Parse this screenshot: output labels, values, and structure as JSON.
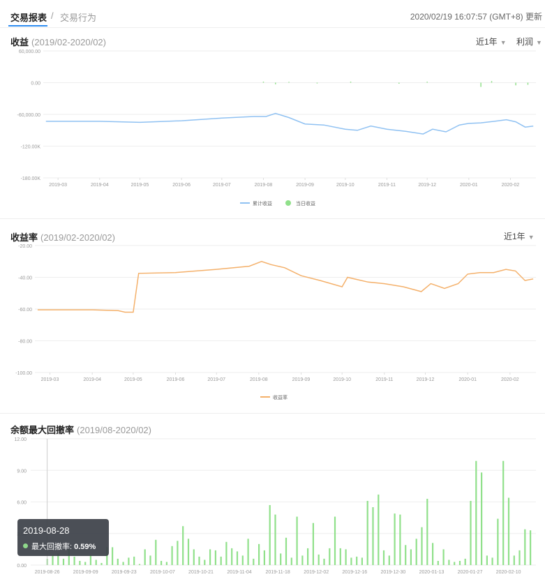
{
  "header": {
    "tab_active": "交易报表",
    "separator": "/",
    "tab_inactive": "交易行为",
    "datetime": "2020/02/19 16:07:57",
    "timezone": "(GMT+8)",
    "update": "更新"
  },
  "profit": {
    "title": "收益",
    "period": "(2019/02-2020/02)",
    "range_label": "近1年",
    "metric_label": "利润"
  },
  "rate": {
    "title": "收益率",
    "period": "(2019/02-2020/02)",
    "range_label": "近1年"
  },
  "drawdown": {
    "title": "余额最大回撤率",
    "period": "(2019/08-2020/02)"
  },
  "tooltip": {
    "date": "2019-08-28",
    "label": "最大回撤率:",
    "value": "0.59%"
  },
  "colors": {
    "accent": "#2d8cf0",
    "profit_line": "#8fc1f2",
    "rate_line": "#f4b06a",
    "bar_green": "#90e08a",
    "grid": "#eeeeee"
  },
  "chart_data": [
    {
      "type": "line",
      "title": "收益",
      "x_ticks": [
        "2019-03",
        "2019-04",
        "2019-05",
        "2019-06",
        "2019-07",
        "2019-08",
        "2019-09",
        "2019-10",
        "2019-11",
        "2019-12",
        "2020-01",
        "2020-02"
      ],
      "y_ticks": [
        "60,000.00",
        "0.00",
        "-60,000.00",
        "-120.00K",
        "-180.00K"
      ],
      "ylim": [
        -180000,
        60000
      ],
      "legend": [
        "累计收益",
        "当日收益"
      ],
      "series": [
        {
          "name": "累计收益",
          "x": [
            "2019-02-20",
            "2019-04-01",
            "2019-05-01",
            "2019-06-01",
            "2019-07-01",
            "2019-07-25",
            "2019-08-03",
            "2019-08-10",
            "2019-08-20",
            "2019-09-01",
            "2019-09-15",
            "2019-10-01",
            "2019-10-10",
            "2019-10-20",
            "2019-11-01",
            "2019-11-15",
            "2019-11-28",
            "2019-12-05",
            "2019-12-15",
            "2019-12-25",
            "2020-01-01",
            "2020-01-10",
            "2020-01-20",
            "2020-01-29",
            "2020-02-05",
            "2020-02-12",
            "2020-02-18"
          ],
          "y": [
            -73000,
            -73000,
            -75000,
            -72000,
            -67000,
            -64000,
            -64000,
            -58000,
            -66000,
            -78000,
            -80000,
            -88000,
            -90000,
            -82000,
            -88000,
            -92000,
            -97000,
            -88000,
            -93000,
            -80000,
            -77000,
            -76000,
            -73000,
            -70000,
            -74000,
            -84000,
            -82000
          ]
        },
        {
          "name": "当日收益",
          "x": [
            "2019-08-01",
            "2019-08-10",
            "2019-08-20",
            "2019-09-10",
            "2019-10-05",
            "2019-11-10",
            "2019-12-01",
            "2020-01-10",
            "2020-01-18",
            "2020-02-05",
            "2020-02-14"
          ],
          "y": [
            2000,
            -3000,
            1500,
            -1500,
            2000,
            -2000,
            1800,
            -8000,
            3000,
            -5000,
            -4000
          ]
        }
      ]
    },
    {
      "type": "line",
      "title": "收益率",
      "x_ticks": [
        "2019-03",
        "2019-04",
        "2019-05",
        "2019-06",
        "2019-07",
        "2019-08",
        "2019-09",
        "2019-10",
        "2019-11",
        "2019-12",
        "2020-01",
        "2020-02"
      ],
      "y_ticks": [
        "-20.00",
        "-40.00",
        "-60.00",
        "-80.00",
        "-100.00"
      ],
      "ylim": [
        -100,
        -20
      ],
      "legend": [
        "收益率"
      ],
      "series": [
        {
          "name": "收益率",
          "x": [
            "2019-02-20",
            "2019-04-01",
            "2019-04-20",
            "2019-04-25",
            "2019-05-01",
            "2019-05-05",
            "2019-06-01",
            "2019-07-01",
            "2019-07-25",
            "2019-08-03",
            "2019-08-10",
            "2019-08-20",
            "2019-09-01",
            "2019-09-15",
            "2019-10-01",
            "2019-10-05",
            "2019-10-20",
            "2019-11-01",
            "2019-11-15",
            "2019-11-28",
            "2019-12-05",
            "2019-12-15",
            "2019-12-25",
            "2020-01-01",
            "2020-01-10",
            "2020-01-20",
            "2020-01-29",
            "2020-02-05",
            "2020-02-12",
            "2020-02-18"
          ],
          "y": [
            -60.5,
            -60.5,
            -61,
            -62,
            -62,
            -37.5,
            -37,
            -35,
            -33,
            -30,
            -32,
            -34,
            -39,
            -42,
            -46,
            -40,
            -43,
            -44,
            -46,
            -49,
            -44,
            -47,
            -44,
            -38,
            -37,
            -37,
            -35,
            -36,
            -42,
            -41
          ]
        }
      ]
    },
    {
      "type": "bar",
      "title": "余额最大回撤率",
      "x_ticks": [
        "2019-08-26",
        "2019-09-09",
        "2019-09-23",
        "2019-10-07",
        "2019-10-21",
        "2019-11-04",
        "2019-11-18",
        "2019-12-02",
        "2019-12-16",
        "2019-12-30",
        "2020-01-13",
        "2020-01-27",
        "2020-02-10"
      ],
      "y_ticks": [
        "12.00",
        "9.00",
        "6.00",
        "3.00",
        "0.00"
      ],
      "ylim": [
        0,
        12
      ],
      "series": [
        {
          "name": "最大回撤率",
          "values": [
            0.59,
            0.9,
            1.1,
            0.6,
            1.5,
            0.8,
            0.4,
            0.3,
            0.9,
            0.5,
            0.2,
            1.7,
            1.7,
            0.6,
            0.3,
            0.7,
            0.8,
            0.1,
            1.5,
            0.9,
            2.4,
            0.4,
            0.3,
            1.8,
            2.3,
            3.7,
            2.5,
            1.5,
            0.8,
            0.5,
            1.5,
            1.4,
            0.8,
            2.2,
            1.6,
            1.3,
            0.9,
            2.5,
            0.6,
            2.0,
            1.4,
            5.7,
            4.8,
            1.1,
            2.6,
            0.7,
            4.6,
            0.9,
            1.6,
            4.0,
            1.0,
            0.6,
            1.6,
            4.6,
            1.6,
            1.5,
            0.7,
            0.8,
            0.7,
            6.1,
            5.5,
            6.7,
            1.4,
            0.9,
            4.9,
            4.8,
            1.9,
            1.5,
            2.5,
            3.6,
            6.3,
            2.1,
            0.4,
            1.5,
            0.5,
            0.3,
            0.4,
            0.6,
            6.1,
            9.9,
            8.8,
            0.9,
            0.7,
            4.4,
            9.9,
            6.4,
            0.9,
            1.4,
            3.4,
            3.3
          ]
        }
      ]
    }
  ]
}
